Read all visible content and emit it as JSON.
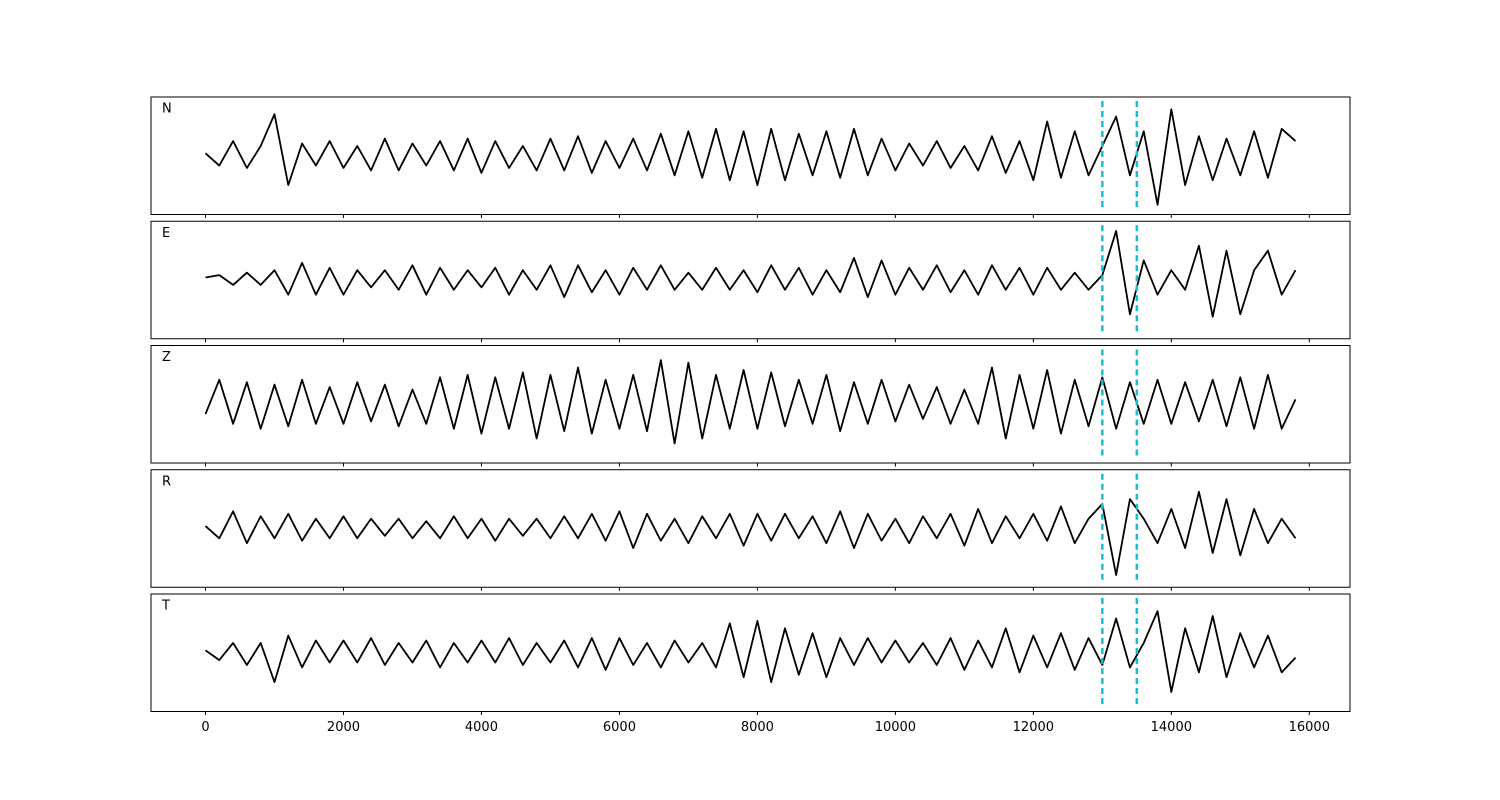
{
  "chart_data": [
    {
      "type": "line",
      "title": "N",
      "color": "#000000",
      "xlim": [
        -790,
        16590
      ],
      "ylim": [
        -1.2,
        1.2
      ],
      "xticks": [
        0,
        2000,
        4000,
        6000,
        8000,
        10000,
        12000,
        14000,
        16000
      ],
      "vlines": [
        13000,
        13500
      ],
      "vline_color": "#17becf",
      "x": [
        0,
        200,
        400,
        600,
        800,
        1000,
        1200,
        1400,
        1600,
        1800,
        2000,
        2200,
        2400,
        2600,
        2800,
        3000,
        3200,
        3400,
        3600,
        3800,
        4000,
        4200,
        4400,
        4600,
        4800,
        5000,
        5200,
        5400,
        5600,
        5800,
        6000,
        6200,
        6400,
        6600,
        6800,
        7000,
        7200,
        7400,
        7600,
        7800,
        8000,
        8200,
        8400,
        8600,
        8800,
        9000,
        9200,
        9400,
        9600,
        9800,
        10000,
        10200,
        10400,
        10600,
        10800,
        11000,
        11200,
        11400,
        11600,
        11800,
        12000,
        12200,
        12400,
        12600,
        12800,
        13000,
        13200,
        13400,
        13600,
        13800,
        14000,
        14200,
        14400,
        14600,
        14800,
        15000,
        15200,
        15400,
        15600,
        15800
      ],
      "values": [
        0.05,
        -0.2,
        0.3,
        -0.25,
        0.2,
        0.85,
        -0.6,
        0.25,
        -0.2,
        0.3,
        -0.25,
        0.2,
        -0.3,
        0.35,
        -0.3,
        0.25,
        -0.2,
        0.3,
        -0.3,
        0.35,
        -0.35,
        0.3,
        -0.25,
        0.2,
        -0.3,
        0.35,
        -0.3,
        0.4,
        -0.35,
        0.3,
        -0.25,
        0.35,
        -0.3,
        0.45,
        -0.4,
        0.5,
        -0.45,
        0.55,
        -0.5,
        0.5,
        -0.6,
        0.55,
        -0.5,
        0.45,
        -0.4,
        0.5,
        -0.45,
        0.55,
        -0.4,
        0.35,
        -0.3,
        0.25,
        -0.2,
        0.3,
        -0.25,
        0.2,
        -0.3,
        0.4,
        -0.35,
        0.3,
        -0.5,
        0.7,
        -0.45,
        0.5,
        -0.4,
        0.2,
        0.8,
        -0.4,
        0.5,
        -1.0,
        0.95,
        -0.6,
        0.4,
        -0.5,
        0.35,
        -0.4,
        0.5,
        -0.45,
        0.55,
        0.3
      ]
    },
    {
      "type": "line",
      "title": "E",
      "color": "#000000",
      "xlim": [
        -790,
        16590
      ],
      "ylim": [
        -1.2,
        1.2
      ],
      "xticks": [
        0,
        2000,
        4000,
        6000,
        8000,
        10000,
        12000,
        14000,
        16000
      ],
      "vlines": [
        13000,
        13500
      ],
      "vline_color": "#17becf",
      "x": [
        0,
        200,
        400,
        600,
        800,
        1000,
        1200,
        1400,
        1600,
        1800,
        2000,
        2200,
        2400,
        2600,
        2800,
        3000,
        3200,
        3400,
        3600,
        3800,
        4000,
        4200,
        4400,
        4600,
        4800,
        5000,
        5200,
        5400,
        5600,
        5800,
        6000,
        6200,
        6400,
        6600,
        6800,
        7000,
        7200,
        7400,
        7600,
        7800,
        8000,
        8200,
        8400,
        8600,
        8800,
        9000,
        9200,
        9400,
        9600,
        9800,
        10000,
        10200,
        10400,
        10600,
        10800,
        11000,
        11200,
        11400,
        11600,
        11800,
        12000,
        12200,
        12400,
        12600,
        12800,
        13000,
        13200,
        13400,
        13600,
        13800,
        14000,
        14200,
        14400,
        14600,
        14800,
        15000,
        15200,
        15400,
        15600,
        15800
      ],
      "values": [
        0.05,
        0.1,
        -0.1,
        0.15,
        -0.1,
        0.2,
        -0.3,
        0.35,
        -0.3,
        0.25,
        -0.3,
        0.2,
        -0.15,
        0.2,
        -0.2,
        0.3,
        -0.3,
        0.25,
        -0.2,
        0.2,
        -0.15,
        0.25,
        -0.3,
        0.2,
        -0.2,
        0.3,
        -0.35,
        0.3,
        -0.25,
        0.2,
        -0.3,
        0.25,
        -0.2,
        0.3,
        -0.2,
        0.15,
        -0.2,
        0.25,
        -0.2,
        0.2,
        -0.25,
        0.3,
        -0.2,
        0.25,
        -0.3,
        0.2,
        -0.25,
        0.45,
        -0.35,
        0.4,
        -0.3,
        0.25,
        -0.2,
        0.3,
        -0.25,
        0.2,
        -0.3,
        0.3,
        -0.2,
        0.25,
        -0.3,
        0.25,
        -0.2,
        0.15,
        -0.2,
        0.1,
        1.0,
        -0.7,
        0.4,
        -0.3,
        0.2,
        -0.2,
        0.7,
        -0.75,
        0.6,
        -0.7,
        0.2,
        0.6,
        -0.3,
        0.2
      ]
    },
    {
      "type": "line",
      "title": "Z",
      "color": "#000000",
      "xlim": [
        -790,
        16590
      ],
      "ylim": [
        -1.2,
        1.2
      ],
      "xticks": [
        0,
        2000,
        4000,
        6000,
        8000,
        10000,
        12000,
        14000,
        16000
      ],
      "vlines": [
        13000,
        13500
      ],
      "vline_color": "#17becf",
      "x": [
        0,
        200,
        400,
        600,
        800,
        1000,
        1200,
        1400,
        1600,
        1800,
        2000,
        2200,
        2400,
        2600,
        2800,
        3000,
        3200,
        3400,
        3600,
        3800,
        4000,
        4200,
        4400,
        4600,
        4800,
        5000,
        5200,
        5400,
        5600,
        5800,
        6000,
        6200,
        6400,
        6600,
        6800,
        7000,
        7200,
        7400,
        7600,
        7800,
        8000,
        8200,
        8400,
        8600,
        8800,
        9000,
        9200,
        9400,
        9600,
        9800,
        10000,
        10200,
        10400,
        10600,
        10800,
        11000,
        11200,
        11400,
        11600,
        11800,
        12000,
        12200,
        12400,
        12600,
        12800,
        13000,
        13200,
        13400,
        13600,
        13800,
        14000,
        14200,
        14400,
        14600,
        14800,
        15000,
        15200,
        15400,
        15600,
        15800
      ],
      "values": [
        -0.2,
        0.5,
        -0.4,
        0.45,
        -0.5,
        0.4,
        -0.45,
        0.5,
        -0.4,
        0.35,
        -0.4,
        0.45,
        -0.35,
        0.4,
        -0.45,
        0.3,
        -0.4,
        0.55,
        -0.5,
        0.6,
        -0.6,
        0.55,
        -0.5,
        0.65,
        -0.7,
        0.6,
        -0.55,
        0.75,
        -0.6,
        0.5,
        -0.5,
        0.6,
        -0.55,
        0.9,
        -0.8,
        0.85,
        -0.7,
        0.6,
        -0.5,
        0.7,
        -0.5,
        0.65,
        -0.45,
        0.5,
        -0.4,
        0.6,
        -0.55,
        0.45,
        -0.4,
        0.5,
        -0.35,
        0.4,
        -0.3,
        0.35,
        -0.4,
        0.3,
        -0.4,
        0.75,
        -0.7,
        0.6,
        -0.5,
        0.7,
        -0.6,
        0.5,
        -0.45,
        0.55,
        -0.5,
        0.45,
        -0.4,
        0.5,
        -0.4,
        0.45,
        -0.35,
        0.5,
        -0.45,
        0.55,
        -0.5,
        0.6,
        -0.5,
        0.1
      ]
    },
    {
      "type": "line",
      "title": "R",
      "color": "#000000",
      "xlim": [
        -790,
        16590
      ],
      "ylim": [
        -1.2,
        1.2
      ],
      "xticks": [
        0,
        2000,
        4000,
        6000,
        8000,
        10000,
        12000,
        14000,
        16000
      ],
      "vlines": [
        13000,
        13500
      ],
      "vline_color": "#17becf",
      "x": [
        0,
        200,
        400,
        600,
        800,
        1000,
        1200,
        1400,
        1600,
        1800,
        2000,
        2200,
        2400,
        2600,
        2800,
        3000,
        3200,
        3400,
        3600,
        3800,
        4000,
        4200,
        4400,
        4600,
        4800,
        5000,
        5200,
        5400,
        5600,
        5800,
        6000,
        6200,
        6400,
        6600,
        6800,
        7000,
        7200,
        7400,
        7600,
        7800,
        8000,
        8200,
        8400,
        8600,
        8800,
        9000,
        9200,
        9400,
        9600,
        9800,
        10000,
        10200,
        10400,
        10600,
        10800,
        11000,
        11200,
        11400,
        11600,
        11800,
        12000,
        12200,
        12400,
        12600,
        12800,
        13000,
        13200,
        13400,
        13600,
        13800,
        14000,
        14200,
        14400,
        14600,
        14800,
        15000,
        15200,
        15400,
        15600,
        15800
      ],
      "values": [
        0.05,
        -0.2,
        0.35,
        -0.3,
        0.25,
        -0.2,
        0.3,
        -0.25,
        0.2,
        -0.2,
        0.25,
        -0.2,
        0.2,
        -0.15,
        0.2,
        -0.2,
        0.15,
        -0.2,
        0.25,
        -0.2,
        0.2,
        -0.25,
        0.2,
        -0.15,
        0.2,
        -0.2,
        0.25,
        -0.2,
        0.3,
        -0.25,
        0.35,
        -0.4,
        0.3,
        -0.25,
        0.2,
        -0.3,
        0.25,
        -0.2,
        0.3,
        -0.35,
        0.3,
        -0.25,
        0.3,
        -0.2,
        0.25,
        -0.3,
        0.35,
        -0.4,
        0.3,
        -0.25,
        0.2,
        -0.3,
        0.25,
        -0.2,
        0.3,
        -0.35,
        0.4,
        -0.3,
        0.25,
        -0.2,
        0.3,
        -0.25,
        0.45,
        -0.3,
        0.2,
        0.5,
        -0.95,
        0.6,
        0.2,
        -0.3,
        0.4,
        -0.4,
        0.75,
        -0.5,
        0.6,
        -0.55,
        0.4,
        -0.3,
        0.2,
        -0.2
      ]
    },
    {
      "type": "line",
      "title": "T",
      "color": "#000000",
      "xlim": [
        -790,
        16590
      ],
      "ylim": [
        -1.2,
        1.2
      ],
      "xticks": [
        0,
        2000,
        4000,
        6000,
        8000,
        10000,
        12000,
        14000,
        16000
      ],
      "vlines": [
        13000,
        13500
      ],
      "vline_color": "#17becf",
      "x": [
        0,
        200,
        400,
        600,
        800,
        1000,
        1200,
        1400,
        1600,
        1800,
        2000,
        2200,
        2400,
        2600,
        2800,
        3000,
        3200,
        3400,
        3600,
        3800,
        4000,
        4200,
        4400,
        4600,
        4800,
        5000,
        5200,
        5400,
        5600,
        5800,
        6000,
        6200,
        6400,
        6600,
        6800,
        7000,
        7200,
        7400,
        7600,
        7800,
        8000,
        8200,
        8400,
        8600,
        8800,
        9000,
        9200,
        9400,
        9600,
        9800,
        10000,
        10200,
        10400,
        10600,
        10800,
        11000,
        11200,
        11400,
        11600,
        11800,
        12000,
        12200,
        12400,
        12600,
        12800,
        13000,
        13200,
        13400,
        13600,
        13800,
        14000,
        14200,
        14400,
        14600,
        14800,
        15000,
        15200,
        15400,
        15600,
        15800
      ],
      "values": [
        0.05,
        -0.15,
        0.2,
        -0.25,
        0.2,
        -0.6,
        0.35,
        -0.3,
        0.25,
        -0.2,
        0.25,
        -0.2,
        0.3,
        -0.25,
        0.2,
        -0.2,
        0.25,
        -0.3,
        0.2,
        -0.2,
        0.25,
        -0.2,
        0.3,
        -0.25,
        0.2,
        -0.2,
        0.25,
        -0.3,
        0.3,
        -0.35,
        0.3,
        -0.25,
        0.2,
        -0.3,
        0.25,
        -0.2,
        0.2,
        -0.3,
        0.6,
        -0.5,
        0.65,
        -0.6,
        0.5,
        -0.45,
        0.4,
        -0.5,
        0.3,
        -0.25,
        0.3,
        -0.2,
        0.25,
        -0.2,
        0.2,
        -0.25,
        0.3,
        -0.35,
        0.25,
        -0.3,
        0.5,
        -0.4,
        0.35,
        -0.3,
        0.4,
        -0.35,
        0.3,
        -0.25,
        0.7,
        -0.3,
        0.2,
        0.85,
        -0.8,
        0.5,
        -0.4,
        0.75,
        -0.5,
        0.4,
        -0.3,
        0.35,
        -0.4,
        -0.1
      ]
    }
  ]
}
